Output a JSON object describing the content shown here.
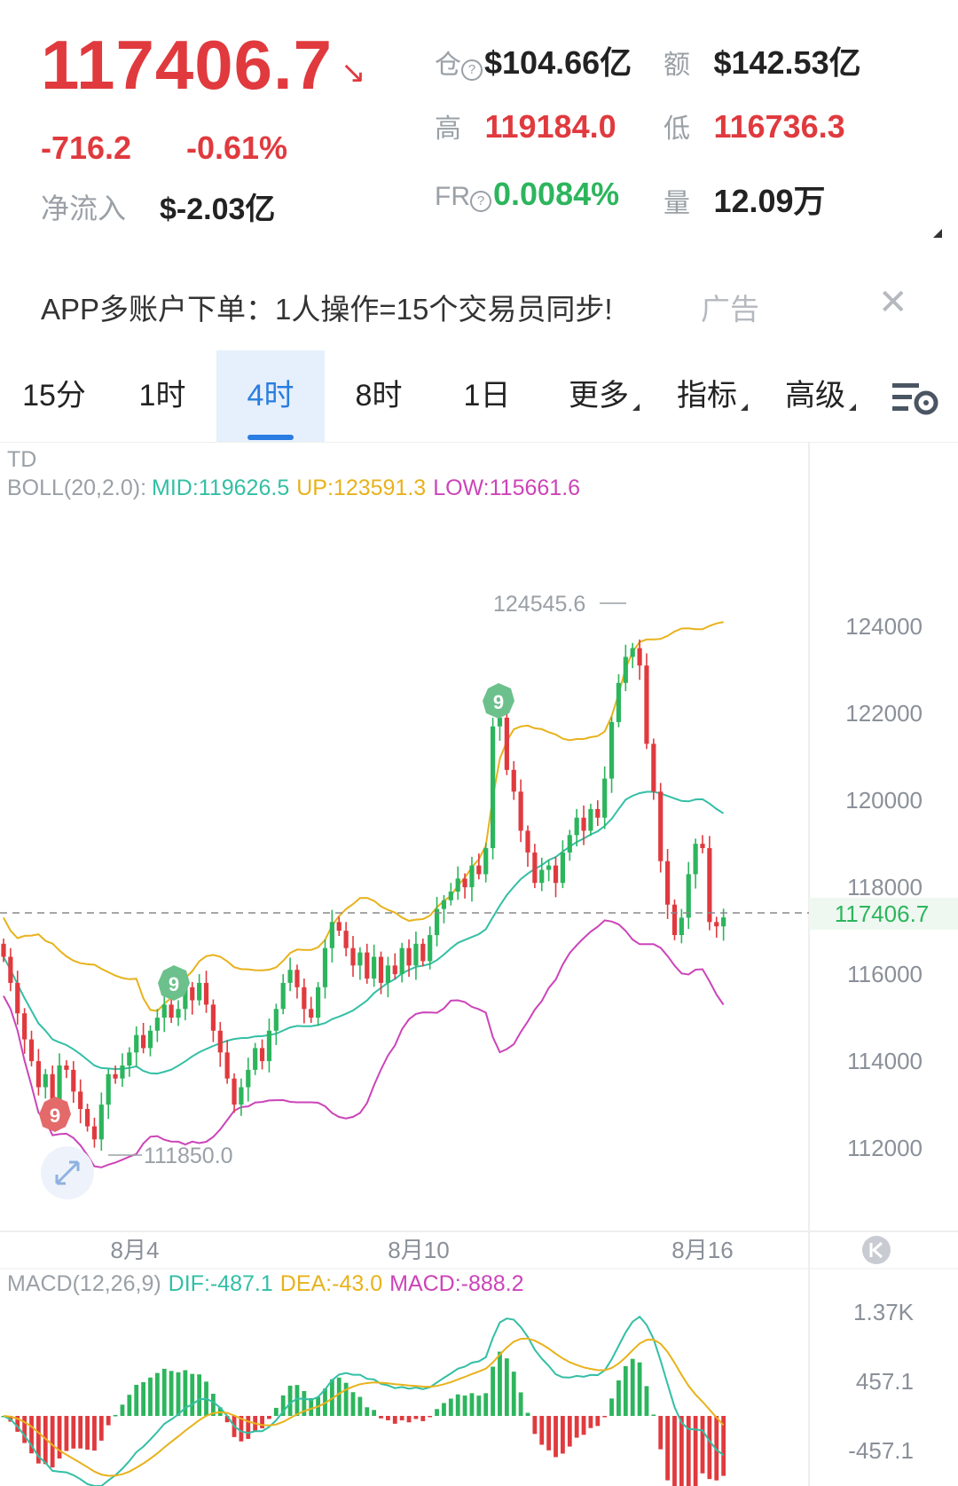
{
  "ticker": {
    "price": "117406.7",
    "change_abs": "-716.2",
    "change_pct": "-0.61%",
    "netflow_label": "净流入",
    "netflow_value": "$-2.03亿"
  },
  "stats": {
    "oi_label": "仓",
    "oi_value": "$104.66亿",
    "turnover_label": "额",
    "turnover_value": "$142.53亿",
    "high_label": "高",
    "high_value": "119184.0",
    "low_label": "低",
    "low_value": "116736.3",
    "fr_label": "FR",
    "fr_value": "0.0084%",
    "vol_label": "量",
    "vol_value": "12.09万"
  },
  "ad": {
    "text": "APP多账户下单：1人操作=15个交易员同步!",
    "tag": "广告"
  },
  "tabs": [
    {
      "label": "15分"
    },
    {
      "label": "1时"
    },
    {
      "label": "4时",
      "active": true
    },
    {
      "label": "8时"
    },
    {
      "label": "1日"
    },
    {
      "label": "更多"
    },
    {
      "label": "指标"
    },
    {
      "label": "高级"
    }
  ],
  "indicators": {
    "td_label": "TD",
    "boll_label": "BOLL(20,2.0):",
    "boll_mid": "MID:119626.5",
    "boll_up": "UP:123591.3",
    "boll_low": "LOW:115661.6",
    "macd_label": "MACD(12,26,9)",
    "macd_dif": "DIF:-487.1",
    "macd_dea": "DEA:-43.0",
    "macd_val": "MACD:-888.2"
  },
  "colors": {
    "up": "#2db55d",
    "down": "#e03a3e",
    "boll_mid": "#33bfa5",
    "boll_up": "#e8b21c",
    "boll_low": "#cc44b8",
    "accent": "#2a7de1"
  },
  "chart_data": {
    "type": "candlestick",
    "price_axis": [
      "124000",
      "122000",
      "120000",
      "118000",
      "116000",
      "114000",
      "112000"
    ],
    "ylim": [
      110000,
      127500
    ],
    "last_price_label": "117406.7",
    "max_label": "124545.6",
    "min_label": "111850.0",
    "date_labels": [
      "8月4",
      "8月10",
      "8月16"
    ],
    "td_marks": [
      "9",
      "9",
      "9"
    ],
    "macd_axis": [
      "1.37K",
      "457.1",
      "-457.1"
    ],
    "close": [
      116500,
      115900,
      115200,
      114600,
      114100,
      113500,
      113800,
      113200,
      114000,
      113900,
      113400,
      113000,
      112600,
      112300,
      113100,
      113800,
      113700,
      114000,
      114300,
      114700,
      114400,
      114800,
      115100,
      115400,
      115100,
      115300,
      115800,
      115500,
      115900,
      115400,
      114800,
      114300,
      113700,
      113100,
      113500,
      113900,
      114400,
      114100,
      114800,
      115300,
      115900,
      116200,
      115800,
      115300,
      115100,
      115800,
      116700,
      117300,
      117100,
      116700,
      116300,
      116600,
      116000,
      116500,
      115900,
      116300,
      116100,
      116700,
      116300,
      116800,
      116400,
      117000,
      117600,
      117800,
      118000,
      118300,
      118100,
      118600,
      118400,
      119000,
      121800,
      122000,
      120800,
      120300,
      119400,
      118900,
      118200,
      118500,
      118600,
      118200,
      118900,
      119300,
      119700,
      119400,
      119900,
      119700,
      120600,
      121900,
      122800,
      123400,
      123600,
      123200,
      121400,
      120300,
      118700,
      117700,
      117000,
      117400,
      118400,
      119100,
      119000,
      117300,
      117200,
      117406.7
    ]
  }
}
